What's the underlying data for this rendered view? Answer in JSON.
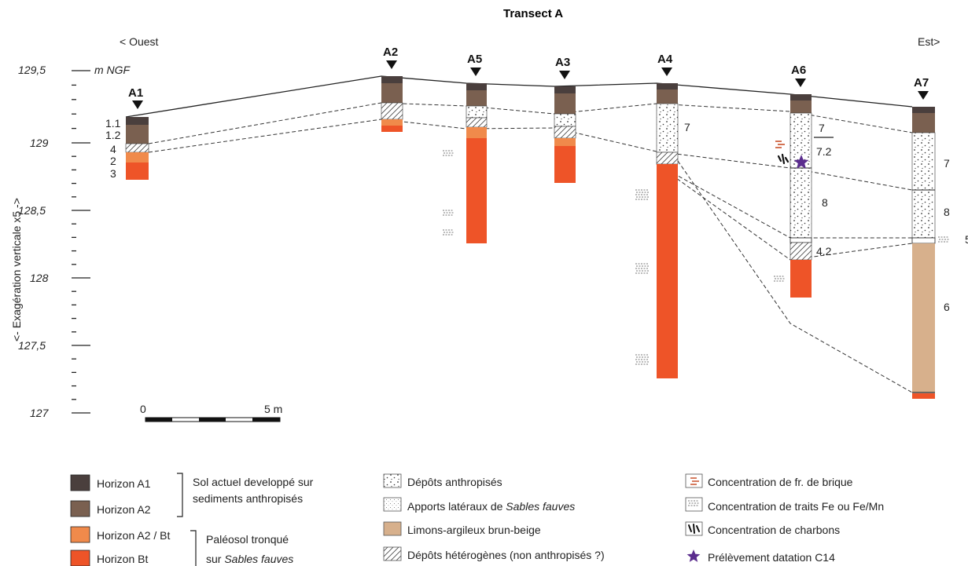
{
  "title": "Transect A",
  "direction": {
    "west": "< Ouest",
    "east": "Est>"
  },
  "axis": {
    "label": "<- Exagération verticale x5 ->",
    "unit": "m NGF",
    "ticks": [
      {
        "value": 129.5,
        "label": "129,5"
      },
      {
        "value": 129,
        "label": "129"
      },
      {
        "value": 128.5,
        "label": "128,5"
      },
      {
        "value": 128,
        "label": "128"
      },
      {
        "value": 127.5,
        "label": "127,5"
      },
      {
        "value": 127,
        "label": "127"
      }
    ]
  },
  "scale_bar": {
    "start": "0",
    "end": "5 m"
  },
  "cores": [
    {
      "id": "A1",
      "top": 129.18
    },
    {
      "id": "A2",
      "top": 129.5
    },
    {
      "id": "A5",
      "top": 129.45
    },
    {
      "id": "A3",
      "top": 129.43
    },
    {
      "id": "A4",
      "top": 129.45
    },
    {
      "id": "A6",
      "top": 129.37
    },
    {
      "id": "A7",
      "top": 129.28
    }
  ],
  "unit_labels": {
    "a1": [
      "1.1",
      "1.2",
      "4",
      "2",
      "3"
    ],
    "a4": [
      "7"
    ],
    "a6": [
      "7",
      "7.2",
      "8",
      "4.2"
    ],
    "a7": [
      "7",
      "8",
      "5",
      "6"
    ]
  },
  "legend": {
    "col1": {
      "items": [
        "Horizon A1",
        "Horizon A2",
        "Horizon A2 / Bt",
        "Horizon Bt"
      ],
      "group1": [
        "Sol actuel developpé sur",
        "sediments anthropisés"
      ],
      "group2": [
        "Paléosol tronqué",
        "sur ",
        "Sables fauves"
      ]
    },
    "col2": {
      "items": [
        {
          "text": "Dépôts anthropisés"
        },
        {
          "text": "Apports latéraux de ",
          "em": "Sables fauves"
        },
        {
          "text": "Limons-argileux brun-beige"
        },
        {
          "text": "Dépôts hétérogènes (non anthropisés ?)"
        }
      ]
    },
    "col3": {
      "items": [
        "Concentration de fr. de brique",
        "Concentration de traits Fe ou Fe/Mn",
        "Concentration de charbons",
        "Prélèvement datation C14"
      ]
    }
  },
  "colors": {
    "horizon_a1": "#4a3f3d",
    "horizon_a2": "#7a6050",
    "horizon_a2bt": "#f08a4b",
    "horizon_bt": "#ee5428",
    "limons": "#d7b08c",
    "star": "#5b2d8e",
    "brick": "#c8502a"
  }
}
